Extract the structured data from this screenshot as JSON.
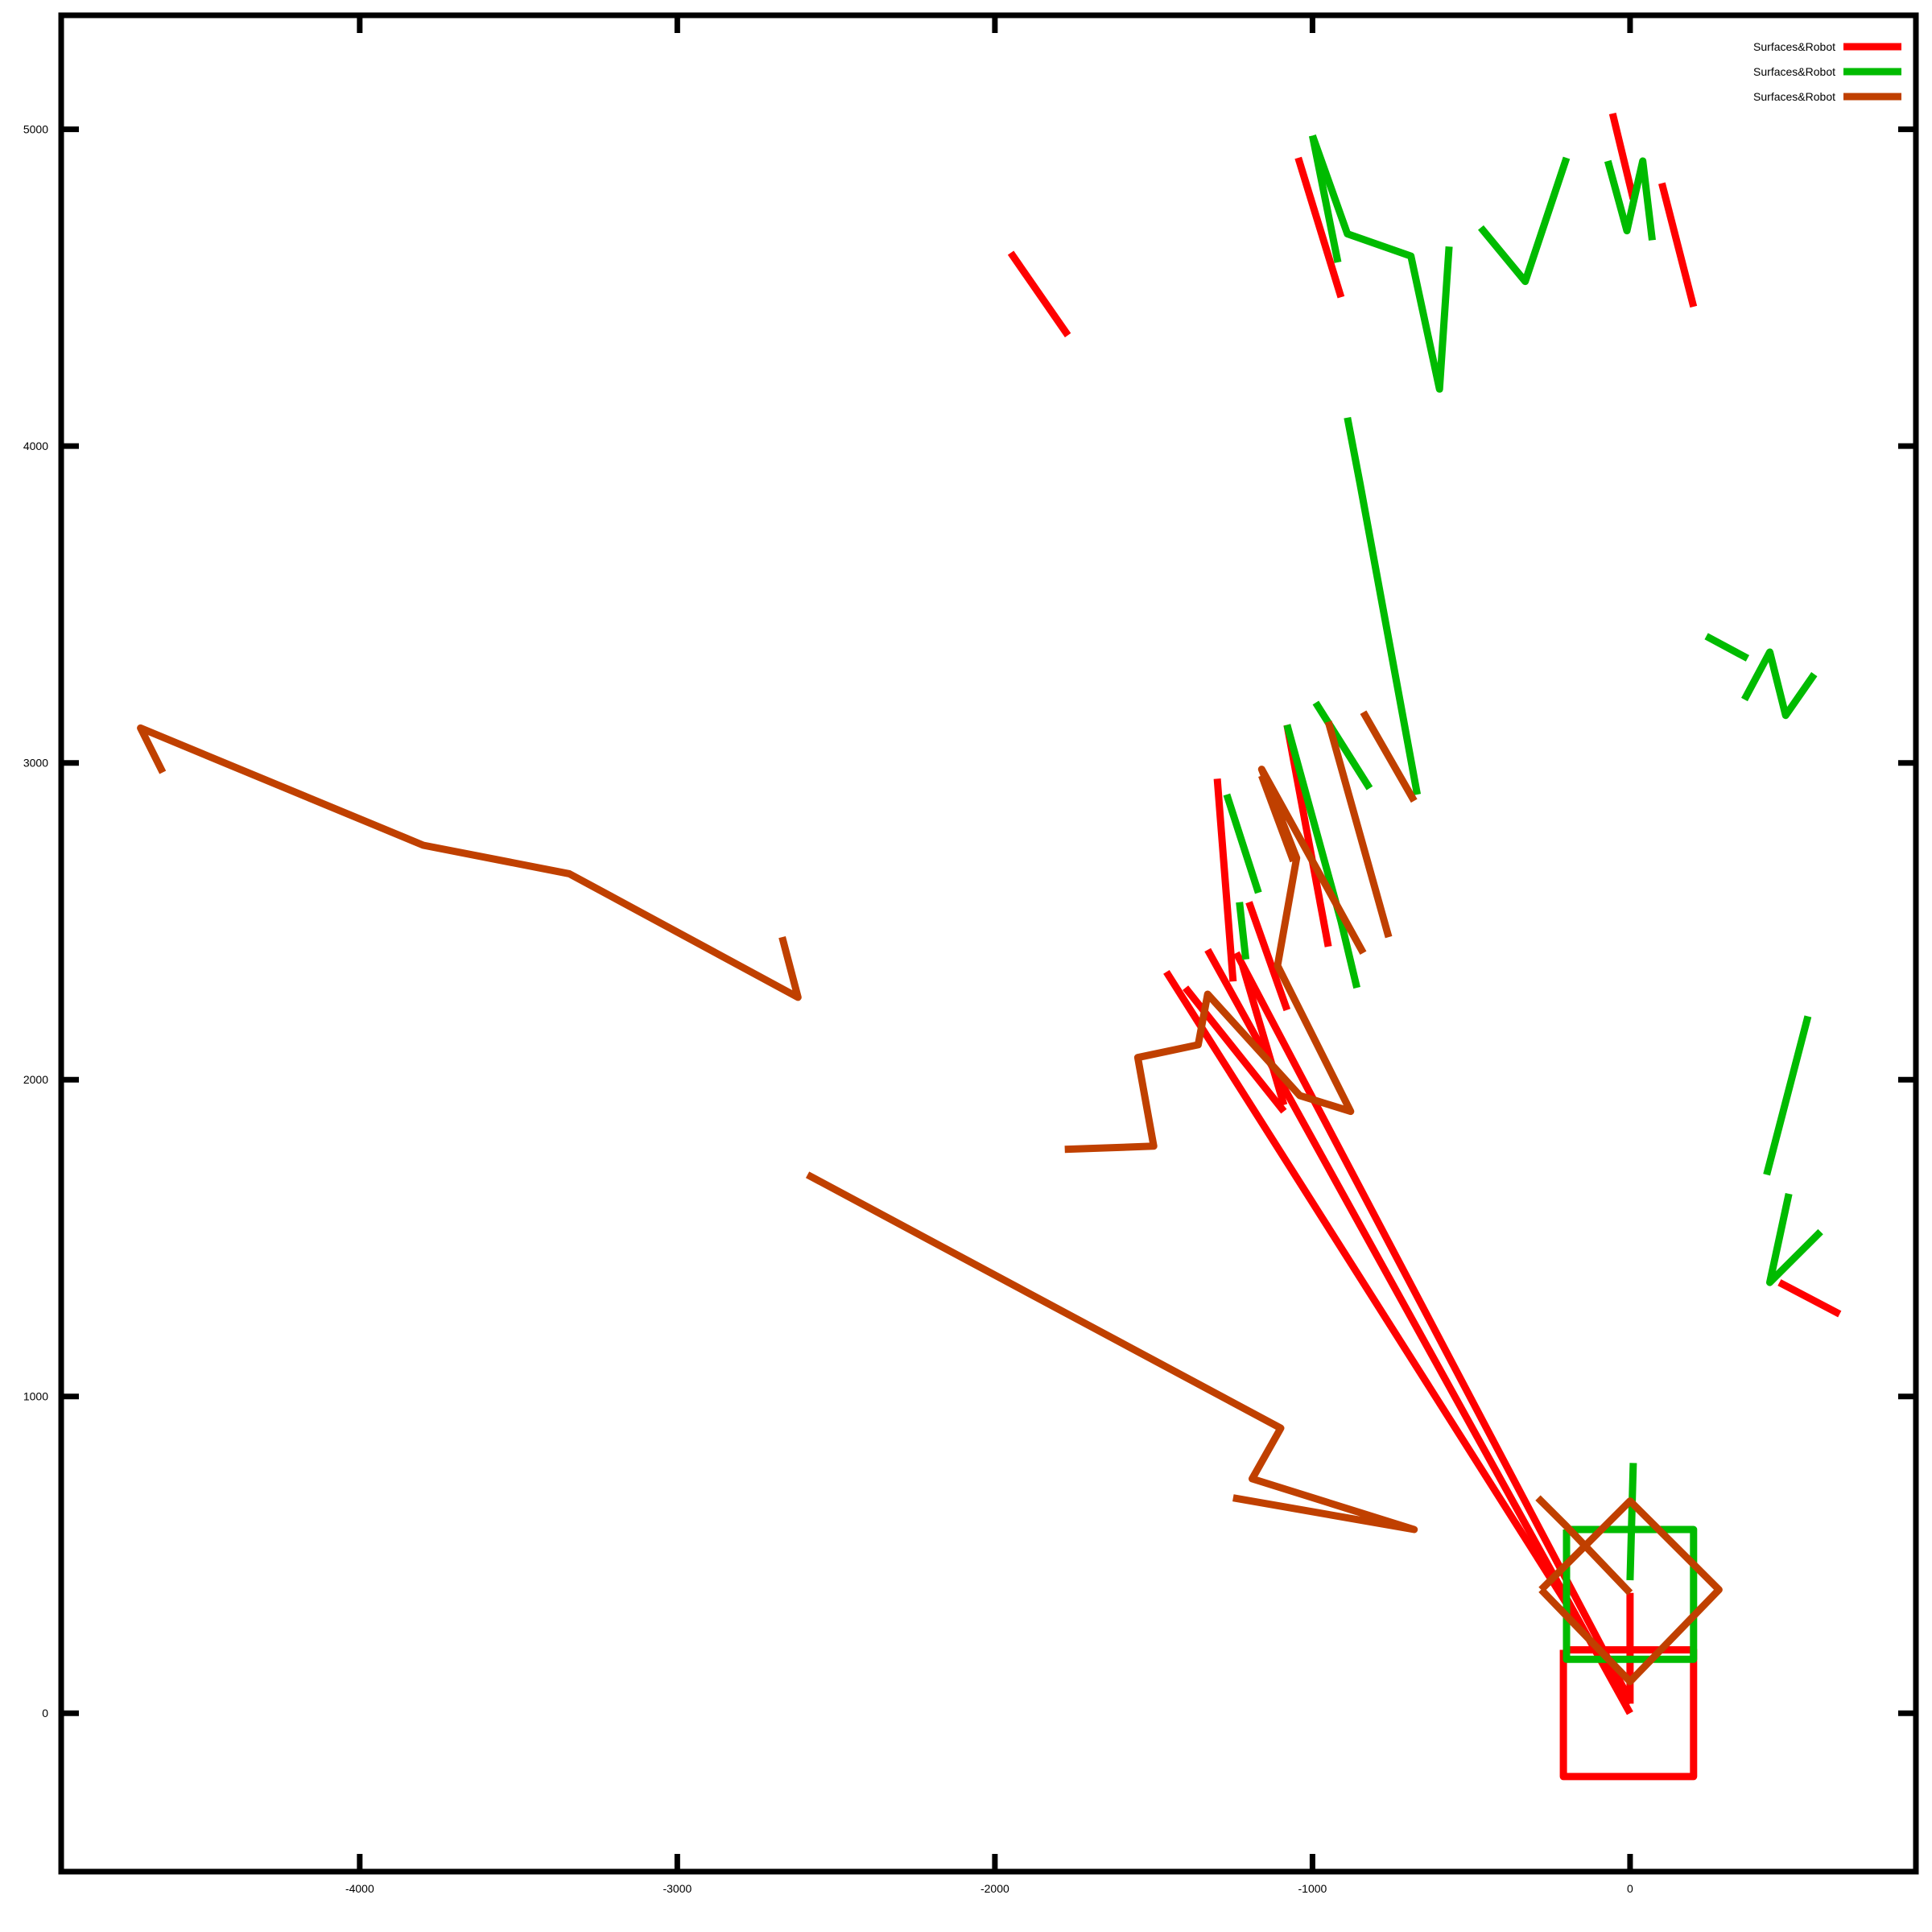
{
  "chart_data": {
    "type": "line",
    "title": "",
    "xlabel": "",
    "ylabel": "",
    "xlim": [
      -4940,
      900
    ],
    "ylim": [
      -500,
      5360
    ],
    "x_ticks": [
      -4000,
      -3000,
      -2000,
      -1000,
      0
    ],
    "y_ticks": [
      0,
      1000,
      2000,
      3000,
      4000,
      5000
    ],
    "x_tick_labels": [
      "-4000",
      "-3000",
      "-2000",
      "-1000",
      "0"
    ],
    "y_tick_labels": [
      "0",
      "1000",
      "2000",
      "3000",
      "4000",
      "5000"
    ],
    "grid": false,
    "legend_position": "top-right",
    "series": [
      {
        "name": "Surfaces&Robot",
        "color": "#ff0000",
        "segments": [
          [
            [
              -1950,
              4610
            ],
            [
              -1770,
              4350
            ]
          ],
          [
            [
              -1045,
              4910
            ],
            [
              -910,
              4470
            ]
          ],
          [
            [
              -55,
              5050
            ],
            [
              10,
              4780
            ]
          ],
          [
            [
              100,
              4830
            ],
            [
              200,
              4440
            ]
          ],
          [
            [
              -1300,
              2950
            ],
            [
              -1250,
              2310
            ]
          ],
          [
            [
              -1080,
              3120
            ],
            [
              -950,
              2420
            ]
          ],
          [
            [
              -1200,
              2560
            ],
            [
              -1080,
              2220
            ]
          ],
          [
            [
              -1460,
              2340
            ],
            [
              0,
              30
            ]
          ],
          [
            [
              -1330,
              2410
            ],
            [
              0,
              0
            ]
          ],
          [
            [
              -1240,
              2400
            ],
            [
              0,
              40
            ]
          ],
          [
            [
              -1220,
              2360
            ],
            [
              -1090,
              1920
            ]
          ],
          [
            [
              -1400,
              2290
            ],
            [
              -1090,
              1900
            ]
          ],
          [
            [
              -210,
              200
            ],
            [
              200,
              200
            ],
            [
              200,
              -200
            ],
            [
              -210,
              -200
            ],
            [
              -210,
              200
            ]
          ],
          [
            [
              0,
              380
            ],
            [
              0,
              30
            ]
          ],
          [
            [
              470,
              1360
            ],
            [
              660,
              1260
            ]
          ]
        ]
      },
      {
        "name": "Surfaces&Robot",
        "color": "#00bb00",
        "segments": [
          [
            [
              -1000,
              4980
            ],
            [
              -920,
              4580
            ]
          ],
          [
            [
              -1000,
              4980
            ],
            [
              -890,
              4670
            ],
            [
              -690,
              4600
            ],
            [
              -600,
              4180
            ],
            [
              -570,
              4630
            ]
          ],
          [
            [
              -470,
              4690
            ],
            [
              -330,
              4520
            ],
            [
              -200,
              4910
            ]
          ],
          [
            [
              -70,
              4900
            ],
            [
              -10,
              4680
            ],
            [
              40,
              4900
            ],
            [
              70,
              4650
            ]
          ],
          [
            [
              -890,
              4090
            ],
            [
              -850,
              3880
            ],
            [
              -670,
              2900
            ]
          ],
          [
            [
              -990,
              3190
            ],
            [
              -820,
              2920
            ]
          ],
          [
            [
              -1080,
              3120
            ],
            [
              -910,
              2500
            ],
            [
              -860,
              2290
            ]
          ],
          [
            [
              -1270,
              2900
            ],
            [
              -1170,
              2590
            ]
          ],
          [
            [
              -1230,
              2560
            ],
            [
              -1210,
              2380
            ]
          ],
          [
            [
              240,
              3400
            ],
            [
              370,
              3330
            ]
          ],
          [
            [
              360,
              3200
            ],
            [
              440,
              3350
            ],
            [
              490,
              3150
            ],
            [
              580,
              3280
            ]
          ],
          [
            [
              430,
              1700
            ],
            [
              560,
              2200
            ]
          ],
          [
            [
              500,
              1640
            ],
            [
              440,
              1360
            ],
            [
              600,
              1520
            ]
          ],
          [
            [
              -200,
              580
            ],
            [
              200,
              580
            ],
            [
              200,
              170
            ],
            [
              -200,
              170
            ],
            [
              -200,
              580
            ]
          ],
          [
            [
              10,
              790
            ],
            [
              0,
              420
            ]
          ]
        ]
      },
      {
        "name": "Surfaces&Robot",
        "color": "#c04000",
        "segments": [
          [
            [
              -4620,
              2970
            ],
            [
              -4690,
              3110
            ],
            [
              -3800,
              2740
            ],
            [
              -3340,
              2650
            ],
            [
              -2620,
              2260
            ],
            [
              -2670,
              2450
            ]
          ],
          [
            [
              -2590,
              1700
            ],
            [
              -1100,
              900
            ],
            [
              -1190,
              740
            ],
            [
              -680,
              580
            ],
            [
              -1250,
              680
            ]
          ],
          [
            [
              -1780,
              1780
            ],
            [
              -1500,
              1790
            ],
            [
              -1550,
              2070
            ],
            [
              -1360,
              2110
            ],
            [
              -1330,
              2270
            ],
            [
              -1040,
              1950
            ],
            [
              -880,
              1900
            ],
            [
              -1110,
              2360
            ],
            [
              -1050,
              2700
            ],
            [
              -1160,
              2980
            ],
            [
              -840,
              2400
            ]
          ],
          [
            [
              -1160,
              2960
            ],
            [
              -1060,
              2690
            ]
          ],
          [
            [
              -950,
              3130
            ],
            [
              -760,
              2450
            ]
          ],
          [
            [
              -840,
              3160
            ],
            [
              -680,
              2880
            ]
          ],
          [
            [
              -290,
              680
            ],
            [
              -200,
              590
            ],
            [
              0,
              380
            ]
          ],
          [
            [
              -280,
              390
            ],
            [
              0,
              670
            ],
            [
              280,
              390
            ],
            [
              0,
              100
            ],
            [
              -280,
              390
            ]
          ]
        ]
      }
    ]
  }
}
